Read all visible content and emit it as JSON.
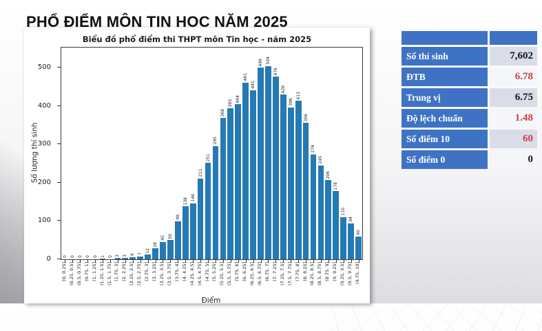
{
  "page_title": "PHỔ ĐIỂM MÔN TIN HỌC NĂM 2025",
  "chart_data": {
    "type": "bar",
    "title": "Biểu đồ phổ điểm thi THPT môn Tin học - năm 2025",
    "xlabel": "Điểm",
    "ylabel": "Số lượng thí sinh",
    "ylim": [
      0,
      552
    ],
    "yticks": [
      0,
      100,
      200,
      300,
      400,
      500
    ],
    "grid": false,
    "bar_color": "#2579b5",
    "categories": [
      "[0, 0.25]",
      "(0.25, 0.5]",
      "(0.5, 0.75]",
      "(0.75, 1]",
      "(1, 1.25]",
      "(1.25, 1.5]",
      "(1.5, 1.75]",
      "(1.75, 2]",
      "(2, 2.25]",
      "(2.25, 2.5]",
      "(2.5, 2.75]",
      "(2.75, 3]",
      "(3, 3.25]",
      "(3.25, 3.5]",
      "(3.5, 3.75]",
      "(3.75, 4]",
      "(4, 4.25]",
      "(4.25, 4.5]",
      "(4.5, 4.75]",
      "(4.75, 5]",
      "(5, 5.25]",
      "(5.25, 5.5]",
      "(5.5, 5.75]",
      "(5.75, 6]",
      "(6, 6.25]",
      "(6.25, 6.5]",
      "(6.5, 6.75]",
      "(6.75, 7]",
      "(7, 7.25]",
      "(7.25, 7.5]",
      "(7.5, 7.75]",
      "(7.75, 8]",
      "(8, 8.25]",
      "(8.25, 8.5]",
      "(8.5, 8.75]",
      "(8.75, 9]",
      "(9, 9.25]",
      "(9.25, 9.5]",
      "(9.5, 9.75]",
      "(9.75, 10]"
    ],
    "values": [
      0,
      0,
      0,
      0,
      0,
      1,
      0,
      3,
      3,
      6,
      7,
      12,
      28,
      45,
      50,
      99,
      138,
      146,
      211,
      251,
      295,
      368,
      393,
      404,
      461,
      441,
      499,
      504,
      476,
      429,
      396,
      413,
      356,
      274,
      245,
      206,
      178,
      110,
      94,
      60
    ]
  },
  "stats_table": {
    "header_color": "#3e73c4",
    "accent_red": "#cc4040",
    "rows": [
      {
        "label": "Số thí sinh",
        "value": "7,602",
        "value_color": "black"
      },
      {
        "label": "ĐTB",
        "value": "6.78",
        "value_color": "red"
      },
      {
        "label": "Trung vị",
        "value": "6.75",
        "value_color": "black"
      },
      {
        "label": "Độ lệch chuẩn",
        "value": "1.48",
        "value_color": "red"
      },
      {
        "label": "Số điểm 10",
        "value": "60",
        "value_color": "red"
      },
      {
        "label": "Số điểm 0",
        "value": "0",
        "value_color": "black"
      }
    ]
  }
}
